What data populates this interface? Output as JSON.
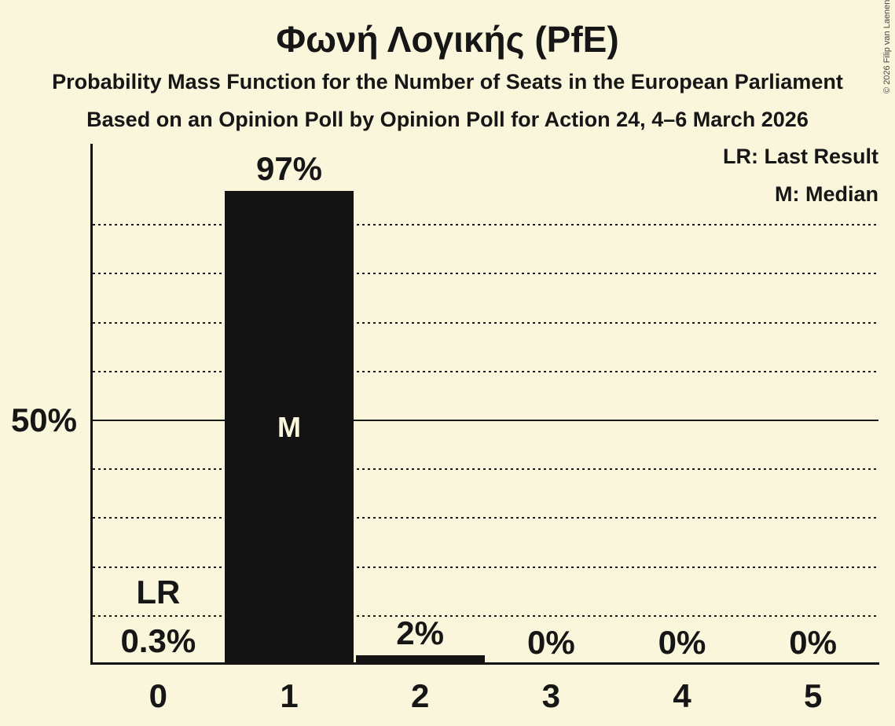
{
  "colors": {
    "background": "#faf6db",
    "bar": "#131313",
    "text": "#161616",
    "grid": "#1b1b1b",
    "label_on_bar": "#faf6db",
    "copyright_text": "#474747"
  },
  "copyright": "© 2026 Filip van Laenen",
  "chart_data": {
    "type": "bar",
    "title": "Φωνή Λογικής (PfE)",
    "subtitle": "Probability Mass Function for the Number of Seats in the European Parliament",
    "source_line": "Based on an Opinion Poll by Opinion Poll for Action 24, 4–6 March 2026",
    "xlabel": "",
    "ylabel": "",
    "categories": [
      "0",
      "1",
      "2",
      "3",
      "4",
      "5"
    ],
    "values": [
      0.3,
      97,
      2,
      0,
      0,
      0
    ],
    "value_labels": [
      "0.3%",
      "97%",
      "2%",
      "0%",
      "0%",
      "0%"
    ],
    "ylim": [
      0,
      100
    ],
    "y_gridlines_pct": [
      10,
      20,
      30,
      40,
      50,
      60,
      70,
      80,
      90
    ],
    "y_solid_line_pct": 50,
    "y_axis_label": {
      "pct": 50,
      "text": "50%"
    },
    "grid_style": "dotted horizontal",
    "legend_position": "top-right",
    "legend_entries": [
      "LR: Last Result",
      "M: Median"
    ],
    "annotations": [
      {
        "column": 0,
        "text": "LR",
        "meaning": "Last Result",
        "placement": "above-axis"
      },
      {
        "column": 1,
        "text": "M",
        "meaning": "Median",
        "placement": "inside-bar"
      }
    ]
  }
}
